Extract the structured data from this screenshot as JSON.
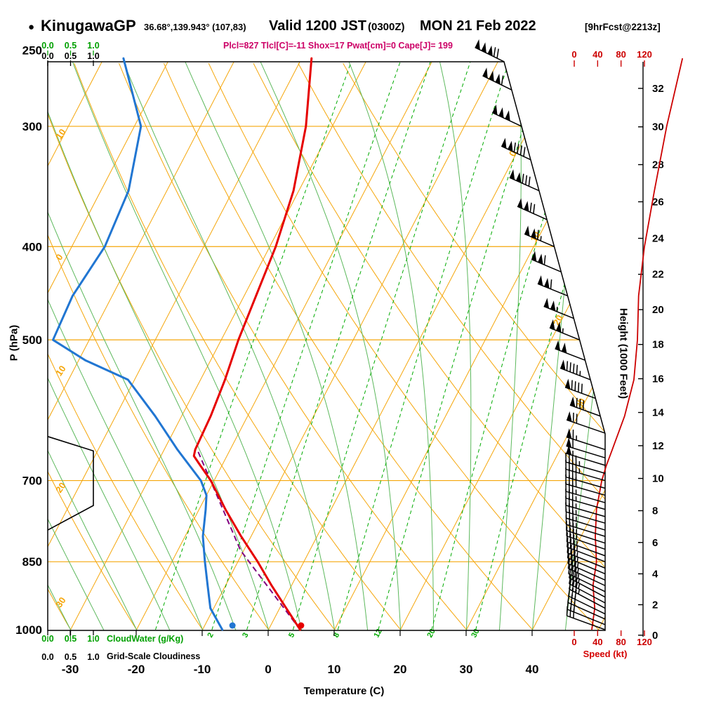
{
  "header": {
    "bullet": "●",
    "station": "KinugawaGP",
    "location": "36.68°,139.943° (107,83)",
    "valid_label": "Valid 1200 JST",
    "valid_zulu": "(0300Z)",
    "valid_date": "MON 21 Feb 2022",
    "forecast": "[9hrFcst@2213z]",
    "indices": "Plcl=827 Tlcl[C]=-11 Shox=17 Pwat[cm]=0 Cape[J]= 199"
  },
  "chart_data": {
    "type": "line",
    "subtype": "skew-t log-p thermodynamic sounding",
    "pressure_axis": {
      "label": "P (hPa)",
      "unit": "hPa",
      "scale": "log",
      "ticks": [
        250,
        300,
        400,
        500,
        700,
        850,
        1000
      ],
      "gridlines": [
        300,
        400,
        500,
        700,
        850
      ],
      "range": [
        1000,
        257
      ]
    },
    "temperature_axis": {
      "label": "Temperature (C)",
      "unit": "C",
      "ticks": [
        -30,
        -20,
        -10,
        0,
        10,
        20,
        30,
        40
      ]
    },
    "height_axis": {
      "label": "Height (1000 Feet)",
      "unit": "1000 ft",
      "ticks_kft": [
        0,
        2,
        4,
        6,
        8,
        10,
        12,
        14,
        16,
        18,
        20,
        22,
        24,
        26,
        28,
        30,
        32
      ]
    },
    "speed_axis": {
      "label": "Speed (kt)",
      "unit": "kt",
      "ticks": [
        0,
        40,
        80,
        120
      ]
    },
    "cloudwater_axis": {
      "label": "CloudWater (g/Kg)",
      "ticks": [
        "0.0",
        "0.5",
        "1.0"
      ]
    },
    "cloudiness_axis": {
      "label": "Grid-Scale Cloudiness",
      "ticks": [
        "0.0",
        "0.5",
        "1.0"
      ]
    },
    "isotherms": {
      "min": -100,
      "max": 50,
      "step": 10,
      "label_values": [
        0,
        10,
        20,
        30
      ]
    },
    "dry_adiabats": {
      "min": -40,
      "max": 80,
      "step": 10,
      "label_values": [
        10,
        0,
        -10,
        -20,
        -30
      ],
      "label_texts": [
        "10",
        "0",
        "10",
        "20",
        "30"
      ]
    },
    "moist_adiabats": {
      "min": -30,
      "max": 45,
      "step": 5
    },
    "mixing_ratio_g_kg": {
      "values": [
        1,
        2,
        3,
        5,
        8,
        12,
        20,
        30
      ],
      "labeled": [
        2,
        3,
        5,
        8,
        12,
        20,
        30
      ]
    },
    "temperature_profile_p_c": [
      [
        1000,
        4.8
      ],
      [
        950,
        1.0
      ],
      [
        900,
        -3.0
      ],
      [
        850,
        -7.0
      ],
      [
        800,
        -11.5
      ],
      [
        750,
        -16.0
      ],
      [
        700,
        -20.5
      ],
      [
        675,
        -23.3
      ],
      [
        660,
        -25.0
      ],
      [
        650,
        -25.3
      ],
      [
        600,
        -25.6
      ],
      [
        550,
        -26.3
      ],
      [
        500,
        -27.4
      ],
      [
        450,
        -28.2
      ],
      [
        400,
        -29.1
      ],
      [
        350,
        -30.8
      ],
      [
        300,
        -34.0
      ],
      [
        255,
        -38.5
      ]
    ],
    "dewpoint_profile_p_c": [
      [
        1000,
        -7.0
      ],
      [
        950,
        -10.5
      ],
      [
        900,
        -12.7
      ],
      [
        850,
        -15.0
      ],
      [
        800,
        -17.3
      ],
      [
        750,
        -19.0
      ],
      [
        725,
        -20.0
      ],
      [
        700,
        -22.0
      ],
      [
        650,
        -28.0
      ],
      [
        600,
        -34.0
      ],
      [
        550,
        -41.0
      ],
      [
        525,
        -49.0
      ],
      [
        500,
        -55.5
      ],
      [
        450,
        -56.0
      ],
      [
        400,
        -55.0
      ],
      [
        350,
        -55.8
      ],
      [
        300,
        -59.0
      ],
      [
        255,
        -67.0
      ]
    ],
    "parcel_path_p_c": [
      [
        1000,
        4.8
      ],
      [
        827,
        -10.5
      ],
      [
        650,
        -25.0
      ]
    ],
    "surface_points": {
      "temperature": [
        990,
        4.6
      ],
      "dewpoint": [
        990,
        -5.8
      ]
    },
    "speed_profile_p_kt": [
      [
        1000,
        30
      ],
      [
        950,
        35
      ],
      [
        900,
        32
      ],
      [
        850,
        38
      ],
      [
        800,
        36
      ],
      [
        750,
        38
      ],
      [
        700,
        47
      ],
      [
        675,
        55
      ],
      [
        650,
        65
      ],
      [
        600,
        86
      ],
      [
        550,
        102
      ],
      [
        500,
        108
      ],
      [
        450,
        110
      ],
      [
        400,
        120
      ],
      [
        350,
        137
      ],
      [
        300,
        158
      ],
      [
        255,
        185
      ]
    ],
    "cloudiness_profile_p_frac": [
      [
        630,
        0
      ],
      [
        652,
        1
      ],
      [
        743,
        1
      ],
      [
        788,
        0
      ]
    ],
    "wind_barbs_p_kt_dir": [
      [
        1000,
        30,
        290
      ],
      [
        988,
        30,
        292
      ],
      [
        975,
        32,
        294
      ],
      [
        963,
        32,
        296
      ],
      [
        950,
        33,
        298
      ],
      [
        938,
        33,
        298
      ],
      [
        925,
        34,
        298
      ],
      [
        913,
        34,
        296
      ],
      [
        900,
        34,
        295
      ],
      [
        888,
        35,
        294
      ],
      [
        875,
        35,
        293
      ],
      [
        863,
        35,
        292
      ],
      [
        850,
        35,
        291
      ],
      [
        838,
        34,
        290
      ],
      [
        825,
        34,
        289
      ],
      [
        813,
        34,
        288
      ],
      [
        800,
        34,
        287
      ],
      [
        788,
        35,
        287
      ],
      [
        775,
        35,
        286
      ],
      [
        763,
        35,
        286
      ],
      [
        750,
        36,
        286
      ],
      [
        738,
        37,
        286
      ],
      [
        725,
        38,
        286
      ],
      [
        713,
        40,
        286
      ],
      [
        700,
        43,
        286
      ],
      [
        688,
        47,
        286
      ],
      [
        675,
        53,
        287
      ],
      [
        663,
        58,
        287
      ],
      [
        650,
        63,
        288
      ],
      [
        625,
        70,
        289
      ],
      [
        600,
        80,
        290
      ],
      [
        575,
        88,
        290
      ],
      [
        550,
        95,
        291
      ],
      [
        525,
        100,
        291
      ],
      [
        500,
        105,
        292
      ],
      [
        475,
        107,
        292
      ],
      [
        450,
        109,
        292
      ],
      [
        425,
        111,
        293
      ],
      [
        400,
        115,
        293
      ],
      [
        375,
        121,
        294
      ],
      [
        350,
        131,
        294
      ],
      [
        325,
        141,
        295
      ],
      [
        300,
        151,
        295
      ],
      [
        275,
        161,
        296
      ],
      [
        257,
        172,
        296
      ]
    ],
    "colors": {
      "temperature": "#e60000",
      "dewpoint": "#2176d2",
      "parcel": "#800080",
      "grid_orange": "#f5a60a",
      "moist_green": "#5cb85c",
      "mixing_green": "#00aa00",
      "speed_red": "#cc0000",
      "indices_magenta": "#cc0066",
      "scale_green": "#00a000",
      "frame_black": "#000000"
    }
  }
}
